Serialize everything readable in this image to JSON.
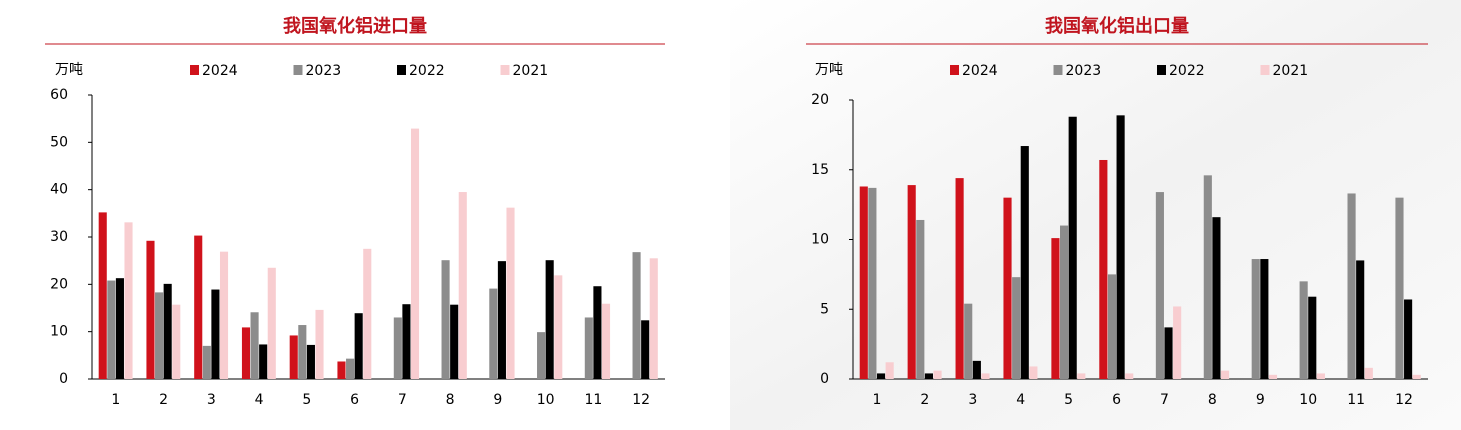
{
  "chart_data": [
    {
      "type": "bar",
      "title": "我国氧化铝进口量",
      "y_label": "万吨",
      "categories": [
        "1",
        "2",
        "3",
        "4",
        "5",
        "6",
        "7",
        "8",
        "9",
        "10",
        "11",
        "12"
      ],
      "series": [
        {
          "name": "2024",
          "color": "#d0121b",
          "values": [
            35.2,
            29.2,
            30.3,
            10.9,
            9.2,
            3.7,
            null,
            null,
            null,
            null,
            null,
            null
          ]
        },
        {
          "name": "2023",
          "color": "#8c8c8c",
          "values": [
            20.8,
            18.3,
            7.0,
            14.1,
            11.4,
            4.3,
            13.0,
            25.1,
            19.1,
            9.9,
            13.0,
            26.8
          ]
        },
        {
          "name": "2022",
          "color": "#000000",
          "values": [
            21.3,
            20.1,
            18.9,
            7.3,
            7.2,
            13.9,
            15.8,
            15.7,
            24.9,
            25.1,
            19.6,
            12.4
          ]
        },
        {
          "name": "2021",
          "color": "#f8cdd0",
          "values": [
            33.1,
            15.7,
            26.9,
            23.5,
            14.6,
            27.5,
            52.9,
            39.5,
            36.2,
            21.9,
            15.9,
            25.5
          ]
        }
      ],
      "ylim": [
        0,
        60
      ],
      "yticks": [
        0,
        10,
        20,
        30,
        40,
        50,
        60
      ],
      "grid": false,
      "legend": "top"
    },
    {
      "type": "bar",
      "title": "我国氧化铝出口量",
      "y_label": "万吨",
      "categories": [
        "1",
        "2",
        "3",
        "4",
        "5",
        "6",
        "7",
        "8",
        "9",
        "10",
        "11",
        "12"
      ],
      "series": [
        {
          "name": "2024",
          "color": "#d0121b",
          "values": [
            13.8,
            13.9,
            14.4,
            13.0,
            10.1,
            15.7,
            null,
            null,
            null,
            null,
            null,
            null
          ]
        },
        {
          "name": "2023",
          "color": "#8c8c8c",
          "values": [
            13.7,
            11.4,
            5.4,
            7.3,
            11.0,
            7.5,
            13.4,
            14.6,
            8.6,
            7.0,
            13.3,
            13.0
          ]
        },
        {
          "name": "2022",
          "color": "#000000",
          "values": [
            0.4,
            0.4,
            1.3,
            16.7,
            18.8,
            18.9,
            3.7,
            11.6,
            8.6,
            5.9,
            8.5,
            5.7
          ]
        },
        {
          "name": "2021",
          "color": "#f8cdd0",
          "values": [
            1.2,
            0.6,
            0.4,
            0.9,
            0.4,
            0.4,
            5.2,
            0.6,
            0.3,
            0.4,
            0.8,
            0.3
          ]
        }
      ],
      "ylim": [
        0,
        20
      ],
      "yticks": [
        0,
        5,
        10,
        15,
        20
      ],
      "grid": false,
      "legend": "top"
    }
  ]
}
